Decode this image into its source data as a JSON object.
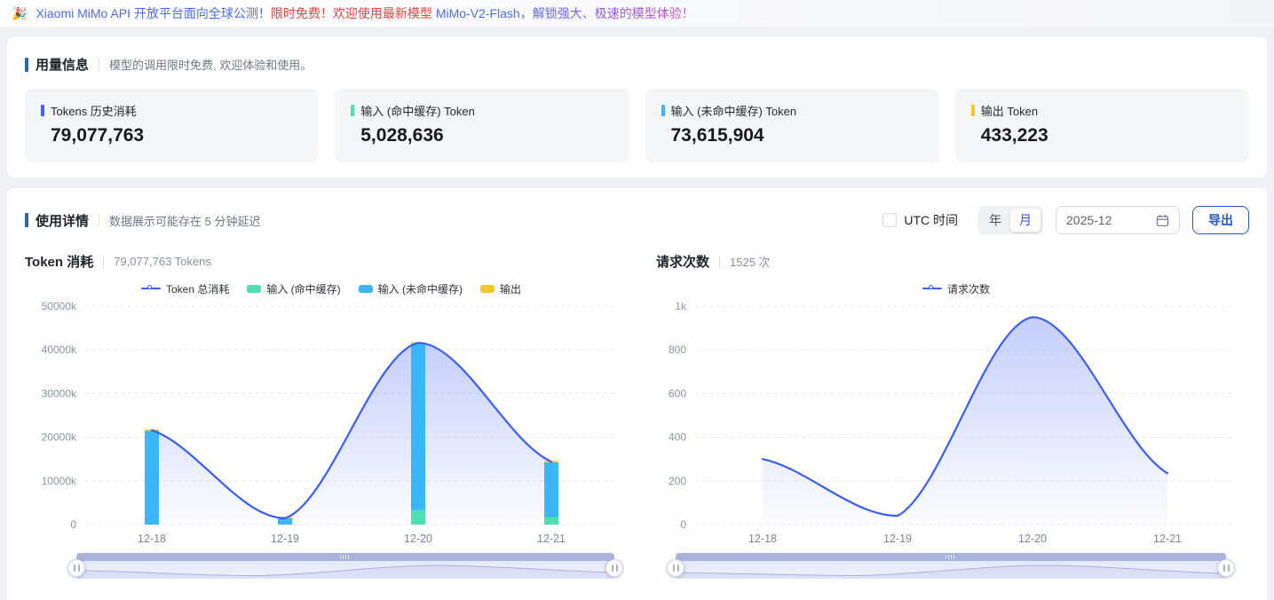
{
  "banner": {
    "emoji": "🎉",
    "part1": "Xiaomi MiMo API 开放平台面向全球公测！",
    "part2": "限时免费！欢迎使用最新模型 ",
    "part3": "MiMo-V2-Flash",
    "part4": "，解锁强大、极速的模型体验！"
  },
  "usage": {
    "title": "用量信息",
    "subtitle": "模型的调用限时免费, 欢迎体验和使用。",
    "stats": [
      {
        "label": "Tokens 历史消耗",
        "value": "79,077,763",
        "color": "#4a5ff7"
      },
      {
        "label": "输入 (命中缓存) Token",
        "value": "5,028,636",
        "color": "#4be0ae"
      },
      {
        "label": "输入 (未命中缓存) Token",
        "value": "73,615,904",
        "color": "#3bb6f8"
      },
      {
        "label": "输出 Token",
        "value": "433,223",
        "color": "#f6c62e"
      }
    ]
  },
  "details": {
    "title": "使用详情",
    "subtitle": "数据展示可能存在 5 分钟延迟",
    "controls": {
      "utc_label": "UTC 时间",
      "utc_checked": false,
      "year_label": "年",
      "month_label": "月",
      "selected_period": "月",
      "date_value": "2025-12",
      "export_label": "导出"
    }
  },
  "icons": {
    "calendar_icon": "calendar-outline",
    "slider_handle_icon": "vertical-grip-lines",
    "banner_icon": "party-popper"
  },
  "chart_data": [
    {
      "type": "line+bar",
      "title": "Token 消耗",
      "total_label": "79,077,763 Tokens",
      "categories": [
        "12-18",
        "12-19",
        "12-20",
        "12-21"
      ],
      "value_unit": "k tokens (thousands)",
      "ylim": [
        0,
        50000
      ],
      "yticks": [
        "0",
        "10000k",
        "20000k",
        "30000k",
        "40000k",
        "50000k"
      ],
      "grid": "dashed-horizontal",
      "legend_position": "top-center",
      "series": [
        {
          "name": "Token 总消耗",
          "type": "line",
          "color": "#3a5ef3",
          "area": true,
          "values": [
            21600,
            1450,
            41600,
            14400
          ]
        },
        {
          "name": "输入 (命中缓存)",
          "type": "bar",
          "color": "#4be0ae",
          "values": [
            0,
            0,
            3300,
            1730
          ]
        },
        {
          "name": "输入 (未命中缓存)",
          "type": "bar",
          "color": "#3bb6f8",
          "values": [
            21480,
            1440,
            38120,
            12547
          ]
        },
        {
          "name": "输出",
          "type": "bar",
          "color": "#f6c62e",
          "values": [
            120,
            10,
            180,
            123
          ]
        }
      ]
    },
    {
      "type": "line",
      "title": "请求次数",
      "total_label": "1525 次",
      "categories": [
        "12-18",
        "12-19",
        "12-20",
        "12-21"
      ],
      "value_unit": "requests",
      "ylim": [
        0,
        1000
      ],
      "yticks": [
        "0",
        "200",
        "400",
        "600",
        "800",
        "1k"
      ],
      "grid": "dashed-horizontal",
      "legend_position": "top-center",
      "series": [
        {
          "name": "请求次数",
          "type": "line",
          "color": "#3a5ef3",
          "area": true,
          "values": [
            300,
            40,
            950,
            235
          ]
        }
      ]
    }
  ]
}
